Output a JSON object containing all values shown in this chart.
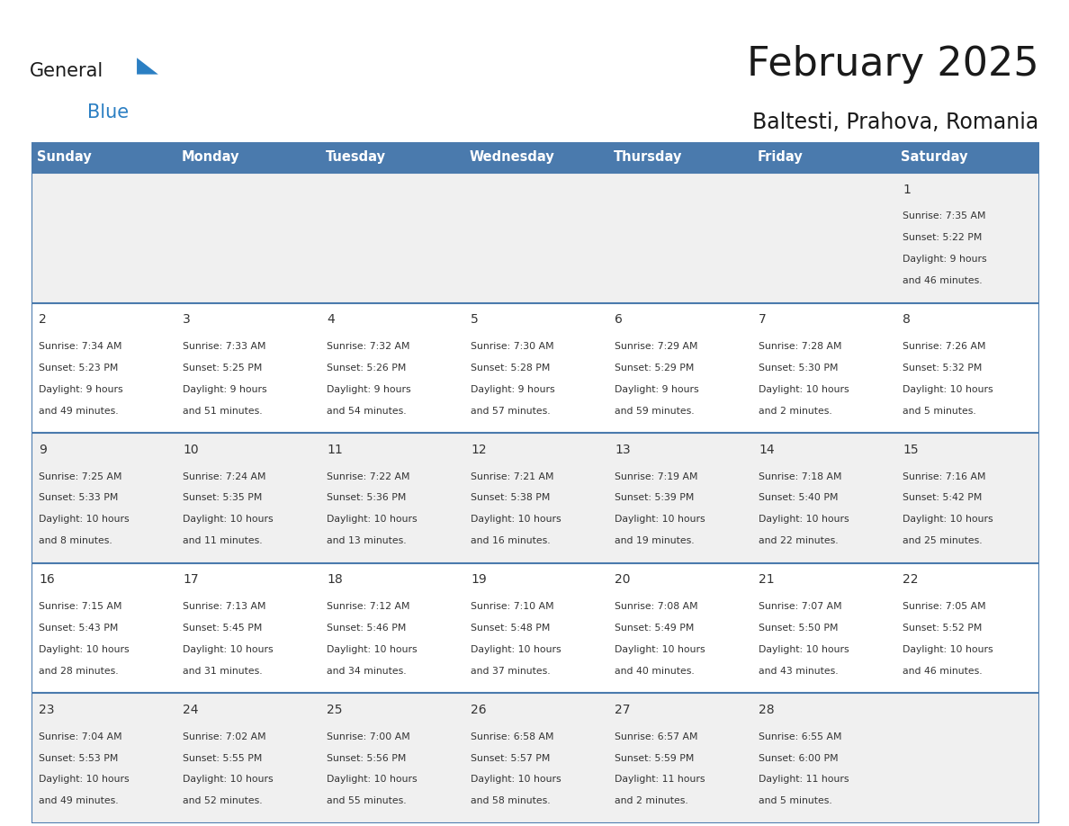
{
  "title": "February 2025",
  "subtitle": "Baltesti, Prahova, Romania",
  "header_color": "#4a7aad",
  "header_text_color": "#ffffff",
  "row_colors": [
    "#f0f0f0",
    "#ffffff",
    "#f0f0f0",
    "#ffffff",
    "#f0f0f0"
  ],
  "grid_line_color": "#4a7aad",
  "text_color": "#333333",
  "day_headers": [
    "Sunday",
    "Monday",
    "Tuesday",
    "Wednesday",
    "Thursday",
    "Friday",
    "Saturday"
  ],
  "logo_general_color": "#1a1a1a",
  "logo_blue_color": "#2B7FC3",
  "logo_triangle_color": "#2B7FC3",
  "days": [
    {
      "date": 1,
      "row": 0,
      "col": 6,
      "sunrise": "7:35 AM",
      "sunset": "5:22 PM",
      "daylight": "9 hours and 46 minutes."
    },
    {
      "date": 2,
      "row": 1,
      "col": 0,
      "sunrise": "7:34 AM",
      "sunset": "5:23 PM",
      "daylight": "9 hours and 49 minutes."
    },
    {
      "date": 3,
      "row": 1,
      "col": 1,
      "sunrise": "7:33 AM",
      "sunset": "5:25 PM",
      "daylight": "9 hours and 51 minutes."
    },
    {
      "date": 4,
      "row": 1,
      "col": 2,
      "sunrise": "7:32 AM",
      "sunset": "5:26 PM",
      "daylight": "9 hours and 54 minutes."
    },
    {
      "date": 5,
      "row": 1,
      "col": 3,
      "sunrise": "7:30 AM",
      "sunset": "5:28 PM",
      "daylight": "9 hours and 57 minutes."
    },
    {
      "date": 6,
      "row": 1,
      "col": 4,
      "sunrise": "7:29 AM",
      "sunset": "5:29 PM",
      "daylight": "9 hours and 59 minutes."
    },
    {
      "date": 7,
      "row": 1,
      "col": 5,
      "sunrise": "7:28 AM",
      "sunset": "5:30 PM",
      "daylight": "10 hours and 2 minutes."
    },
    {
      "date": 8,
      "row": 1,
      "col": 6,
      "sunrise": "7:26 AM",
      "sunset": "5:32 PM",
      "daylight": "10 hours and 5 minutes."
    },
    {
      "date": 9,
      "row": 2,
      "col": 0,
      "sunrise": "7:25 AM",
      "sunset": "5:33 PM",
      "daylight": "10 hours and 8 minutes."
    },
    {
      "date": 10,
      "row": 2,
      "col": 1,
      "sunrise": "7:24 AM",
      "sunset": "5:35 PM",
      "daylight": "10 hours and 11 minutes."
    },
    {
      "date": 11,
      "row": 2,
      "col": 2,
      "sunrise": "7:22 AM",
      "sunset": "5:36 PM",
      "daylight": "10 hours and 13 minutes."
    },
    {
      "date": 12,
      "row": 2,
      "col": 3,
      "sunrise": "7:21 AM",
      "sunset": "5:38 PM",
      "daylight": "10 hours and 16 minutes."
    },
    {
      "date": 13,
      "row": 2,
      "col": 4,
      "sunrise": "7:19 AM",
      "sunset": "5:39 PM",
      "daylight": "10 hours and 19 minutes."
    },
    {
      "date": 14,
      "row": 2,
      "col": 5,
      "sunrise": "7:18 AM",
      "sunset": "5:40 PM",
      "daylight": "10 hours and 22 minutes."
    },
    {
      "date": 15,
      "row": 2,
      "col": 6,
      "sunrise": "7:16 AM",
      "sunset": "5:42 PM",
      "daylight": "10 hours and 25 minutes."
    },
    {
      "date": 16,
      "row": 3,
      "col": 0,
      "sunrise": "7:15 AM",
      "sunset": "5:43 PM",
      "daylight": "10 hours and 28 minutes."
    },
    {
      "date": 17,
      "row": 3,
      "col": 1,
      "sunrise": "7:13 AM",
      "sunset": "5:45 PM",
      "daylight": "10 hours and 31 minutes."
    },
    {
      "date": 18,
      "row": 3,
      "col": 2,
      "sunrise": "7:12 AM",
      "sunset": "5:46 PM",
      "daylight": "10 hours and 34 minutes."
    },
    {
      "date": 19,
      "row": 3,
      "col": 3,
      "sunrise": "7:10 AM",
      "sunset": "5:48 PM",
      "daylight": "10 hours and 37 minutes."
    },
    {
      "date": 20,
      "row": 3,
      "col": 4,
      "sunrise": "7:08 AM",
      "sunset": "5:49 PM",
      "daylight": "10 hours and 40 minutes."
    },
    {
      "date": 21,
      "row": 3,
      "col": 5,
      "sunrise": "7:07 AM",
      "sunset": "5:50 PM",
      "daylight": "10 hours and 43 minutes."
    },
    {
      "date": 22,
      "row": 3,
      "col": 6,
      "sunrise": "7:05 AM",
      "sunset": "5:52 PM",
      "daylight": "10 hours and 46 minutes."
    },
    {
      "date": 23,
      "row": 4,
      "col": 0,
      "sunrise": "7:04 AM",
      "sunset": "5:53 PM",
      "daylight": "10 hours and 49 minutes."
    },
    {
      "date": 24,
      "row": 4,
      "col": 1,
      "sunrise": "7:02 AM",
      "sunset": "5:55 PM",
      "daylight": "10 hours and 52 minutes."
    },
    {
      "date": 25,
      "row": 4,
      "col": 2,
      "sunrise": "7:00 AM",
      "sunset": "5:56 PM",
      "daylight": "10 hours and 55 minutes."
    },
    {
      "date": 26,
      "row": 4,
      "col": 3,
      "sunrise": "6:58 AM",
      "sunset": "5:57 PM",
      "daylight": "10 hours and 58 minutes."
    },
    {
      "date": 27,
      "row": 4,
      "col": 4,
      "sunrise": "6:57 AM",
      "sunset": "5:59 PM",
      "daylight": "11 hours and 2 minutes."
    },
    {
      "date": 28,
      "row": 4,
      "col": 5,
      "sunrise": "6:55 AM",
      "sunset": "6:00 PM",
      "daylight": "11 hours and 5 minutes."
    }
  ]
}
